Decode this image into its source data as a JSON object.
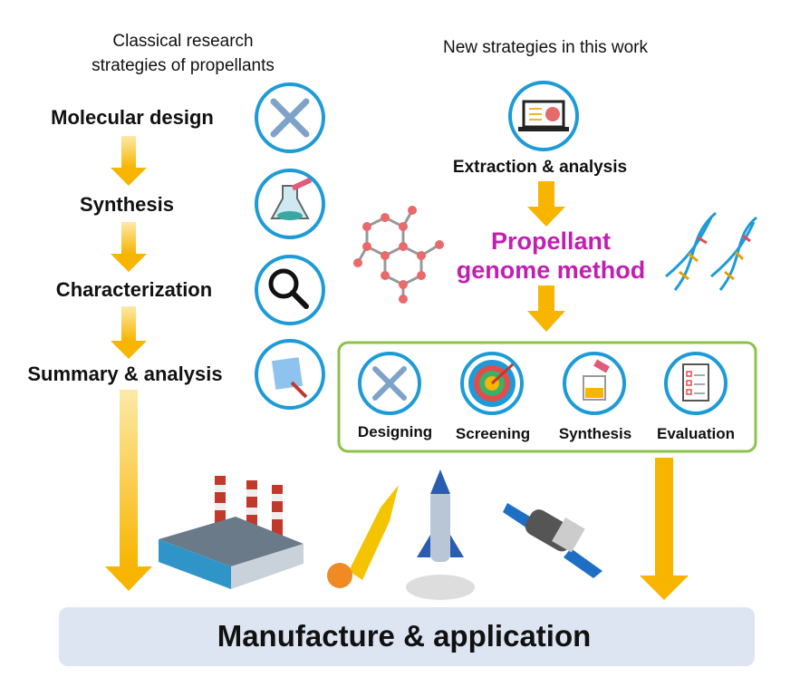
{
  "left": {
    "heading_line1": "Classical research",
    "heading_line2": "strategies of propellants",
    "steps": [
      {
        "label": "Molecular design",
        "icon": "tools-icon"
      },
      {
        "label": "Synthesis",
        "icon": "flask-icon"
      },
      {
        "label": "Characterization",
        "icon": "magnifier-icon"
      },
      {
        "label": "Summary & analysis",
        "icon": "notepad-icon"
      }
    ]
  },
  "right": {
    "heading": "New strategies in this work",
    "extraction": "Extraction & analysis",
    "method_line1": "Propellant",
    "method_line2": "genome method",
    "steps": [
      {
        "label": "Designing",
        "icon": "tools-icon"
      },
      {
        "label": "Screening",
        "icon": "target-icon"
      },
      {
        "label": "Synthesis",
        "icon": "flask-icon"
      },
      {
        "label": "Evaluation",
        "icon": "checklist-icon"
      }
    ]
  },
  "bottom": {
    "label": "Manufacture & application"
  },
  "colors": {
    "circle": "#1e9bd7",
    "arrow": "#f7b500",
    "method": "#c21fb0",
    "box": "#8bc34a",
    "bar": "#dde4f2"
  }
}
